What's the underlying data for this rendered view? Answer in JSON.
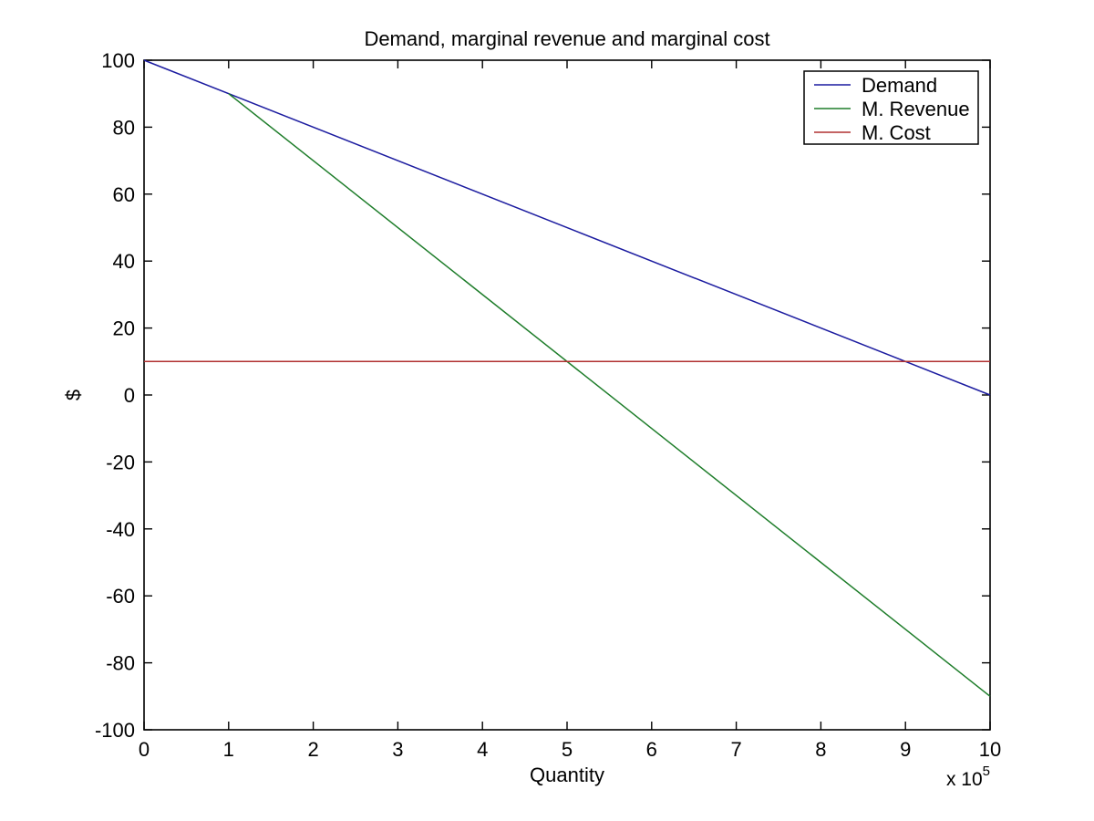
{
  "figure": {
    "background": "#ffffff",
    "axis_color": "#000000"
  },
  "chart_data": {
    "type": "line",
    "title": "Demand, marginal revenue and marginal cost",
    "xlabel": "Quantity",
    "ylabel": "$",
    "x_multiplier_label": {
      "base": "x 10",
      "exponent": "5"
    },
    "xlim": [
      0,
      10
    ],
    "ylim": [
      -100,
      100
    ],
    "x_ticks": [
      0,
      1,
      2,
      3,
      4,
      5,
      6,
      7,
      8,
      9,
      10
    ],
    "y_ticks": [
      -100,
      -80,
      -60,
      -40,
      -20,
      0,
      20,
      40,
      60,
      80,
      100
    ],
    "grid": false,
    "legend": {
      "position": "top-right",
      "entries": [
        "Demand",
        "M. Revenue",
        "M. Cost"
      ]
    },
    "series": [
      {
        "name": "Demand",
        "color": "#1C1CA0",
        "points": [
          [
            0,
            100
          ],
          [
            10,
            0
          ]
        ]
      },
      {
        "name": "M. Revenue",
        "color": "#1E7D2A",
        "points": [
          [
            1,
            90
          ],
          [
            10,
            -90
          ]
        ]
      },
      {
        "name": "M. Cost",
        "color": "#B03030",
        "points": [
          [
            0,
            10
          ],
          [
            10,
            10
          ]
        ]
      }
    ]
  }
}
